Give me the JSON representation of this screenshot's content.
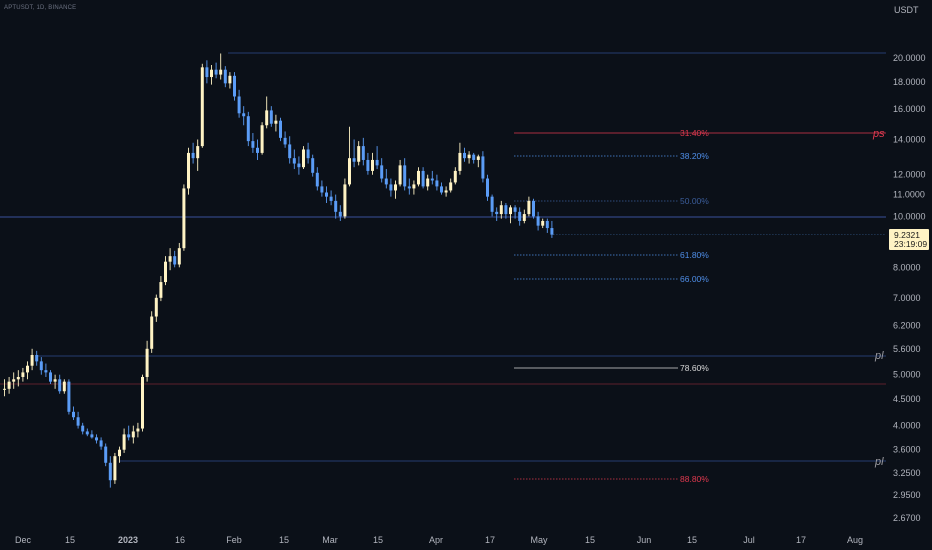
{
  "header": {
    "symbol": "APTUSDT, 1D, BINANCE"
  },
  "price_axis": {
    "currency": "USDT",
    "ticks": [
      "20.0000",
      "18.0000",
      "16.0000",
      "14.0000",
      "12.0000",
      "11.0000",
      "10.0000",
      "8.0000",
      "7.0000",
      "6.2000",
      "5.6000",
      "5.0000",
      "4.5000",
      "4.0000",
      "3.6000",
      "3.2500",
      "2.9500",
      "2.6700"
    ],
    "current_price": "9.2321",
    "countdown": "23:19:09"
  },
  "colors": {
    "background": "#0b1018",
    "up": "#fff3c4",
    "down": "#5b9cf6",
    "fib_blue": "#4f8ee8",
    "fib_red": "#e0394f",
    "fib_white": "#d8d8d8",
    "blue_line": "#2e4d8f",
    "red_line": "#7a2434"
  },
  "chart_data": {
    "type": "candlestick",
    "scale": "log",
    "x_ticks": [
      "Dec",
      "15",
      "2023",
      "16",
      "Feb",
      "15",
      "Mar",
      "15",
      "Apr",
      "17",
      "May",
      "15",
      "Jun",
      "15",
      "Jul",
      "17",
      "Aug"
    ],
    "fib_levels": [
      {
        "label": "31.40%",
        "color": "red"
      },
      {
        "label": "38.20%",
        "color": "blue"
      },
      {
        "label": "50.00%",
        "color": "blue_dim"
      },
      {
        "label": "61.80%",
        "color": "blue"
      },
      {
        "label": "66.00%",
        "color": "blue"
      },
      {
        "label": "78.60%",
        "color": "white"
      },
      {
        "label": "88.80%",
        "color": "red"
      }
    ],
    "markers": [
      {
        "text": "ps",
        "color": "red"
      },
      {
        "text": "pl",
        "color": "grey"
      },
      {
        "text": "pl",
        "color": "grey"
      }
    ],
    "candles": [
      [
        4.7,
        4.9,
        4.55,
        4.7
      ],
      [
        4.7,
        4.95,
        4.6,
        4.85
      ],
      [
        4.85,
        5.05,
        4.7,
        4.9
      ],
      [
        4.9,
        5.1,
        4.75,
        4.95
      ],
      [
        4.95,
        5.15,
        4.85,
        5.05
      ],
      [
        5.05,
        5.3,
        4.9,
        5.2
      ],
      [
        5.2,
        5.6,
        5.1,
        5.45
      ],
      [
        5.45,
        5.55,
        5.2,
        5.3
      ],
      [
        5.3,
        5.4,
        5.0,
        5.1
      ],
      [
        5.1,
        5.25,
        4.95,
        5.05
      ],
      [
        5.05,
        5.1,
        4.8,
        4.85
      ],
      [
        4.85,
        5.0,
        4.7,
        4.9
      ],
      [
        4.9,
        5.0,
        4.6,
        4.65
      ],
      [
        4.65,
        4.9,
        4.6,
        4.85
      ],
      [
        4.85,
        4.9,
        4.2,
        4.25
      ],
      [
        4.25,
        4.35,
        4.1,
        4.15
      ],
      [
        4.15,
        4.25,
        3.95,
        4.0
      ],
      [
        4.0,
        4.05,
        3.85,
        3.9
      ],
      [
        3.9,
        3.95,
        3.82,
        3.85
      ],
      [
        3.85,
        3.92,
        3.78,
        3.8
      ],
      [
        3.8,
        3.85,
        3.7,
        3.75
      ],
      [
        3.75,
        3.8,
        3.6,
        3.65
      ],
      [
        3.65,
        3.7,
        3.35,
        3.4
      ],
      [
        3.4,
        3.5,
        3.05,
        3.15
      ],
      [
        3.15,
        3.55,
        3.1,
        3.5
      ],
      [
        3.5,
        3.65,
        3.4,
        3.6
      ],
      [
        3.6,
        3.95,
        3.55,
        3.85
      ],
      [
        3.85,
        4.0,
        3.75,
        3.8
      ],
      [
        3.8,
        4.0,
        3.7,
        3.9
      ],
      [
        3.9,
        4.05,
        3.8,
        3.95
      ],
      [
        3.95,
        5.0,
        3.9,
        4.95
      ],
      [
        4.95,
        5.8,
        4.85,
        5.6
      ],
      [
        5.6,
        6.6,
        5.5,
        6.45
      ],
      [
        6.45,
        7.1,
        6.3,
        7.0
      ],
      [
        7.0,
        7.7,
        6.9,
        7.5
      ],
      [
        7.5,
        8.4,
        7.4,
        8.2
      ],
      [
        8.2,
        8.7,
        7.9,
        8.4
      ],
      [
        8.4,
        8.6,
        8.0,
        8.1
      ],
      [
        8.1,
        8.9,
        8.0,
        8.7
      ],
      [
        8.7,
        11.5,
        8.6,
        11.3
      ],
      [
        11.3,
        13.5,
        11.0,
        13.2
      ],
      [
        13.2,
        13.8,
        12.6,
        12.9
      ],
      [
        12.9,
        14.0,
        12.2,
        13.6
      ],
      [
        13.6,
        19.5,
        13.5,
        19.2
      ],
      [
        19.2,
        19.8,
        17.9,
        18.4
      ],
      [
        18.4,
        19.4,
        17.8,
        19.0
      ],
      [
        19.0,
        19.6,
        18.3,
        18.6
      ],
      [
        18.6,
        20.4,
        18.2,
        19.0
      ],
      [
        19.0,
        19.3,
        17.6,
        17.9
      ],
      [
        17.9,
        18.8,
        17.5,
        18.5
      ],
      [
        18.5,
        18.8,
        16.6,
        16.9
      ],
      [
        16.9,
        17.4,
        15.4,
        15.7
      ],
      [
        15.7,
        16.2,
        14.9,
        15.5
      ],
      [
        15.5,
        15.8,
        13.6,
        13.9
      ],
      [
        13.9,
        14.4,
        13.2,
        13.5
      ],
      [
        13.5,
        14.0,
        12.8,
        13.2
      ],
      [
        13.2,
        15.1,
        13.1,
        14.9
      ],
      [
        14.9,
        16.9,
        14.7,
        15.9
      ],
      [
        15.9,
        16.2,
        14.8,
        15.0
      ],
      [
        15.0,
        15.6,
        14.5,
        15.2
      ],
      [
        15.2,
        15.4,
        13.9,
        14.1
      ],
      [
        14.1,
        14.5,
        13.5,
        13.7
      ],
      [
        13.7,
        14.2,
        12.6,
        12.9
      ],
      [
        12.9,
        13.4,
        12.3,
        12.6
      ],
      [
        12.6,
        13.0,
        12.0,
        12.4
      ],
      [
        12.4,
        13.6,
        12.3,
        13.4
      ],
      [
        13.4,
        13.8,
        12.6,
        12.9
      ],
      [
        12.9,
        13.1,
        11.9,
        12.1
      ],
      [
        12.1,
        12.4,
        11.2,
        11.4
      ],
      [
        11.4,
        11.7,
        10.9,
        11.1
      ],
      [
        11.1,
        11.4,
        10.6,
        10.9
      ],
      [
        10.9,
        11.2,
        10.5,
        10.7
      ],
      [
        10.7,
        11.0,
        9.9,
        10.2
      ],
      [
        10.2,
        10.5,
        9.8,
        10.0
      ],
      [
        10.0,
        11.8,
        9.9,
        11.5
      ],
      [
        11.5,
        14.8,
        11.4,
        12.9
      ],
      [
        12.9,
        14.0,
        12.4,
        12.7
      ],
      [
        12.7,
        13.9,
        12.5,
        13.6
      ],
      [
        13.6,
        14.1,
        12.5,
        12.8
      ],
      [
        12.8,
        13.2,
        12.0,
        12.2
      ],
      [
        12.2,
        13.2,
        12.0,
        12.8
      ],
      [
        12.8,
        13.6,
        12.3,
        12.5
      ],
      [
        12.5,
        12.9,
        11.6,
        11.8
      ],
      [
        11.8,
        12.3,
        11.3,
        11.5
      ],
      [
        11.5,
        11.8,
        10.9,
        11.2
      ],
      [
        11.2,
        11.7,
        10.8,
        11.5
      ],
      [
        11.5,
        12.8,
        11.4,
        12.5
      ],
      [
        12.5,
        12.9,
        11.2,
        11.4
      ],
      [
        11.4,
        11.8,
        11.0,
        11.3
      ],
      [
        11.3,
        11.7,
        11.0,
        11.5
      ],
      [
        11.5,
        12.4,
        11.4,
        12.2
      ],
      [
        12.2,
        12.4,
        11.3,
        11.4
      ],
      [
        11.4,
        12.0,
        11.2,
        11.8
      ],
      [
        11.8,
        12.2,
        11.5,
        11.7
      ],
      [
        11.7,
        12.0,
        11.2,
        11.4
      ],
      [
        11.4,
        11.6,
        11.0,
        11.1
      ],
      [
        11.1,
        11.4,
        10.9,
        11.2
      ],
      [
        11.2,
        11.8,
        11.1,
        11.6
      ],
      [
        11.6,
        12.4,
        11.5,
        12.2
      ],
      [
        12.2,
        13.8,
        12.0,
        13.2
      ],
      [
        13.2,
        13.5,
        12.7,
        12.9
      ],
      [
        12.9,
        13.3,
        12.6,
        13.1
      ],
      [
        13.1,
        13.2,
        12.6,
        12.8
      ],
      [
        12.8,
        13.1,
        12.4,
        13.0
      ],
      [
        13.0,
        13.3,
        11.6,
        11.8
      ],
      [
        11.8,
        12.0,
        10.7,
        10.9
      ],
      [
        10.9,
        11.0,
        10.0,
        10.2
      ],
      [
        10.2,
        10.4,
        9.8,
        10.1
      ],
      [
        10.1,
        10.7,
        9.9,
        10.5
      ],
      [
        10.5,
        10.6,
        9.9,
        10.1
      ],
      [
        10.1,
        10.5,
        9.7,
        10.4
      ],
      [
        10.4,
        10.5,
        9.9,
        10.2
      ],
      [
        10.2,
        10.4,
        9.6,
        9.8
      ],
      [
        9.8,
        10.3,
        9.7,
        10.1
      ],
      [
        10.1,
        10.9,
        10.0,
        10.7
      ],
      [
        10.7,
        10.8,
        9.9,
        10.0
      ],
      [
        10.0,
        10.2,
        9.4,
        9.6
      ],
      [
        9.6,
        9.9,
        9.5,
        9.8
      ],
      [
        9.8,
        9.9,
        9.3,
        9.5
      ],
      [
        9.5,
        9.8,
        9.1,
        9.23
      ]
    ]
  }
}
